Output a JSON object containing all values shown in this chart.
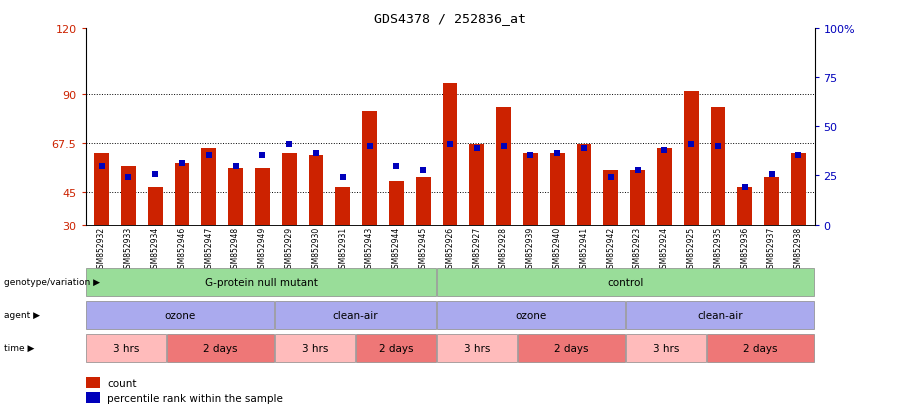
{
  "title": "GDS4378 / 252836_at",
  "samples": [
    "GSM852932",
    "GSM852933",
    "GSM852934",
    "GSM852946",
    "GSM852947",
    "GSM852948",
    "GSM852949",
    "GSM852929",
    "GSM852930",
    "GSM852931",
    "GSM852943",
    "GSM852944",
    "GSM852945",
    "GSM852926",
    "GSM852927",
    "GSM852928",
    "GSM852939",
    "GSM852940",
    "GSM852941",
    "GSM852942",
    "GSM852923",
    "GSM852924",
    "GSM852925",
    "GSM852935",
    "GSM852936",
    "GSM852937",
    "GSM852938"
  ],
  "red_values": [
    63,
    57,
    47,
    58,
    65,
    56,
    56,
    63,
    62,
    47,
    82,
    50,
    52,
    95,
    67,
    84,
    63,
    63,
    67,
    55,
    55,
    65,
    91,
    84,
    47,
    52,
    63
  ],
  "blue_values": [
    57,
    52,
    53,
    58,
    62,
    57,
    62,
    67,
    63,
    52,
    66,
    57,
    55,
    67,
    65,
    66,
    62,
    63,
    65,
    52,
    55,
    64,
    67,
    66,
    47,
    53,
    62
  ],
  "ylim_left": [
    30,
    120
  ],
  "yticks_left": [
    30,
    45,
    67.5,
    90,
    120
  ],
  "ytick_labels_left": [
    "30",
    "45",
    "67.5",
    "90",
    "120"
  ],
  "yticks_right": [
    0,
    25,
    50,
    75,
    100
  ],
  "ytick_labels_right": [
    "0",
    "25",
    "50",
    "75",
    "100%"
  ],
  "hlines": [
    45,
    67.5,
    90
  ],
  "bar_color": "#CC2200",
  "dot_color": "#0000BB",
  "bg_color": "#ffffff",
  "plot_bg": "#ffffff",
  "axis_label_color_left": "#CC2200",
  "axis_label_color_right": "#0000BB",
  "genotype_labels": [
    "G-protein null mutant",
    "control"
  ],
  "genotype_ranges": [
    [
      0,
      13
    ],
    [
      13,
      27
    ]
  ],
  "genotype_color": "#99DD99",
  "agent_labels": [
    "ozone",
    "clean-air",
    "ozone",
    "clean-air"
  ],
  "agent_ranges": [
    [
      0,
      7
    ],
    [
      7,
      13
    ],
    [
      13,
      20
    ],
    [
      20,
      27
    ]
  ],
  "agent_color": "#AAAAEE",
  "time_labels": [
    "3 hrs",
    "2 days",
    "3 hrs",
    "2 days",
    "3 hrs",
    "2 days",
    "3 hrs",
    "2 days"
  ],
  "time_ranges": [
    [
      0,
      3
    ],
    [
      3,
      7
    ],
    [
      7,
      10
    ],
    [
      10,
      13
    ],
    [
      13,
      16
    ],
    [
      16,
      20
    ],
    [
      20,
      23
    ],
    [
      23,
      27
    ]
  ],
  "time_color_light": "#FFBBBB",
  "time_color_dark": "#EE7777",
  "legend_items": [
    "count",
    "percentile rank within the sample"
  ],
  "legend_colors": [
    "#CC2200",
    "#0000BB"
  ]
}
